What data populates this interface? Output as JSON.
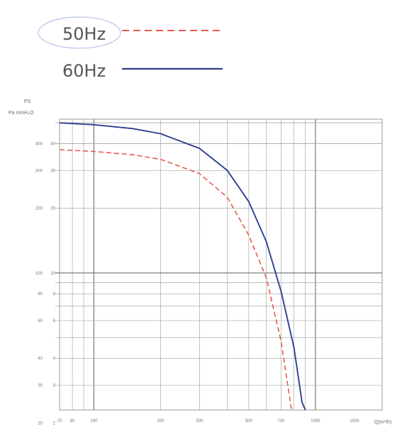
{
  "legend": [
    {
      "label": "50Hz",
      "color": "#e85a4f",
      "style": "dashed"
    },
    {
      "label": "60Hz",
      "color": "#2e3f8f",
      "style": "solid"
    }
  ],
  "chart_data": {
    "type": "line",
    "ylabel_top": "PS",
    "ylabel_units": "Pa mmH₂O",
    "xlabel": "Q(m³/h)",
    "x_scale": "log",
    "xlim": [
      70,
      2000
    ],
    "y_scale": "log",
    "ylim": [
      23,
      520
    ],
    "grid": true,
    "x_ticks": [
      "70",
      "80",
      "100",
      "200",
      "300",
      "500",
      "700",
      "1000",
      "1500"
    ],
    "y_ticks_pa": [
      "400",
      "300",
      "200",
      "100",
      "80",
      "60",
      "40",
      "30",
      "20"
    ],
    "y_ticks_mm": [
      "40",
      "30",
      "20",
      "10",
      "8",
      "6",
      "4",
      "3",
      "2"
    ],
    "series": [
      {
        "name": "50Hz",
        "color": "#e85a4f",
        "style": "dashed",
        "x": [
          70,
          100,
          150,
          200,
          300,
          400,
          500,
          600,
          700,
          750,
          780,
          790
        ],
        "y": [
          375,
          368,
          355,
          338,
          290,
          225,
          150,
          95,
          48,
          30,
          23,
          20
        ]
      },
      {
        "name": "60Hz",
        "color": "#2e3f8f",
        "style": "solid",
        "x": [
          70,
          100,
          150,
          200,
          300,
          400,
          500,
          600,
          700,
          800,
          870,
          900
        ],
        "y": [
          500,
          490,
          470,
          445,
          380,
          300,
          215,
          140,
          82,
          45,
          25,
          20
        ]
      }
    ]
  }
}
